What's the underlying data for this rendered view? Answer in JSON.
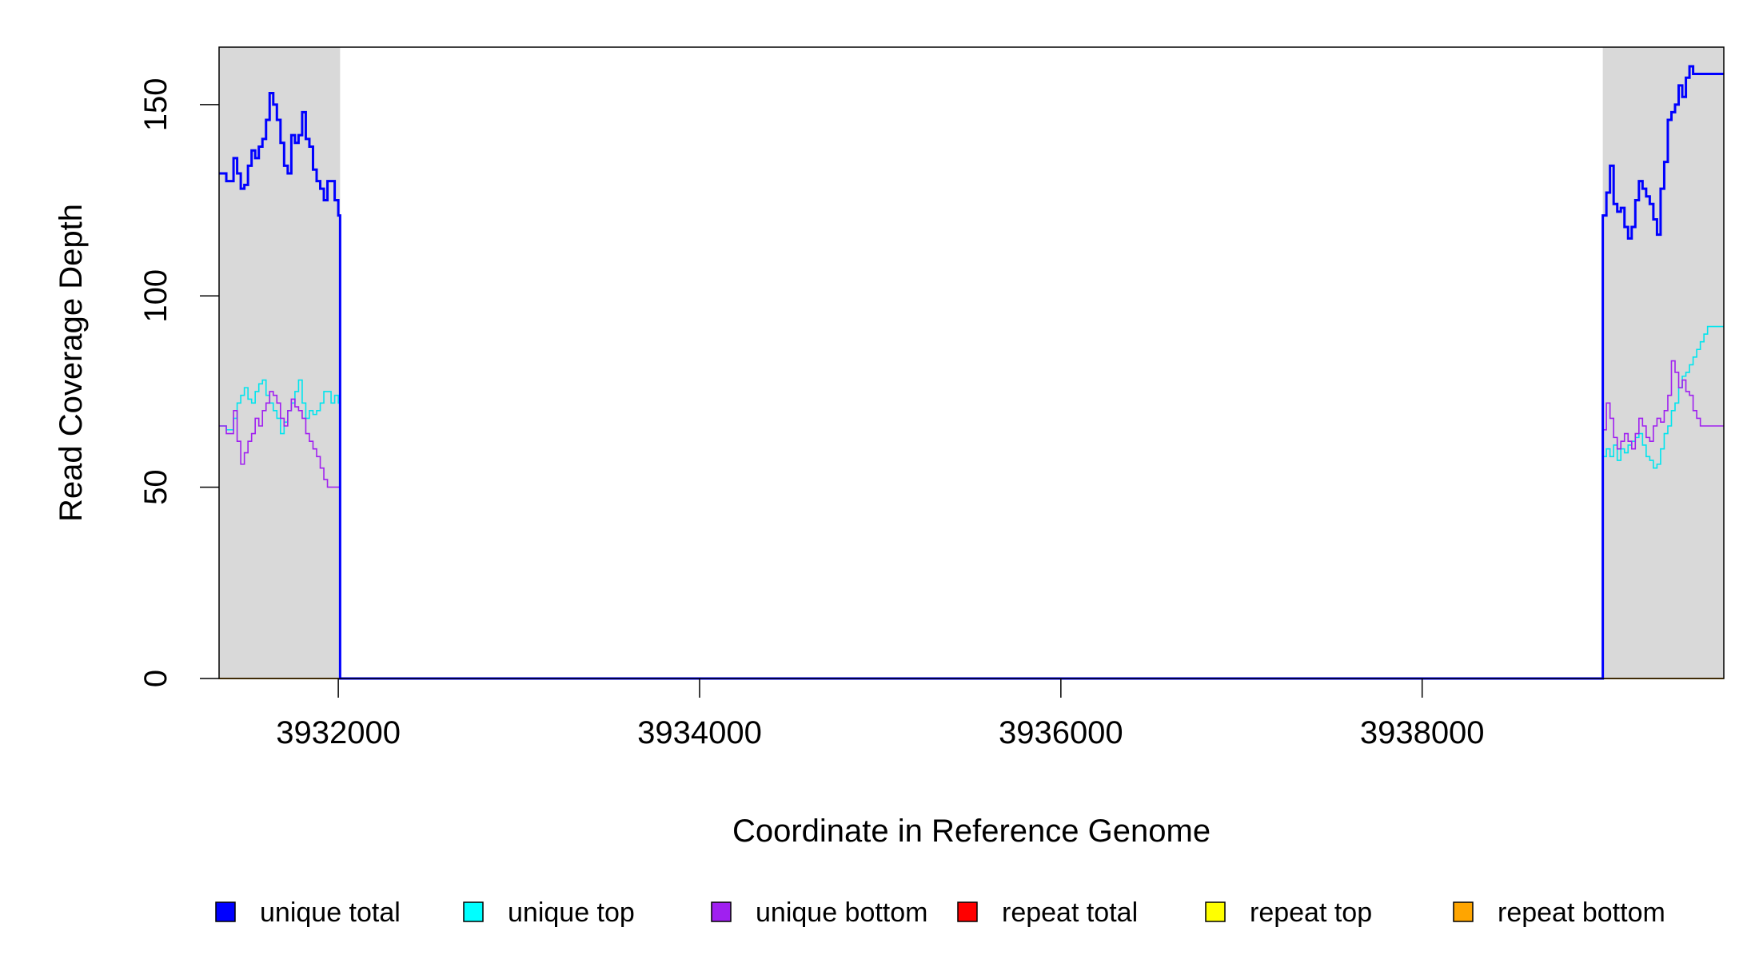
{
  "chart_data": {
    "type": "line",
    "title": "",
    "xlabel": "Coordinate in Reference Genome",
    "ylabel": "Read Coverage Depth",
    "xlim": [
      3931340,
      3939670
    ],
    "ylim": [
      0,
      165
    ],
    "x_ticks": [
      3932000,
      3934000,
      3936000,
      3938000
    ],
    "x_tick_labels": [
      "3932000",
      "3934000",
      "3936000",
      "3938000"
    ],
    "y_ticks": [
      0,
      50,
      100,
      150
    ],
    "y_tick_labels": [
      "0",
      "50",
      "100",
      "150"
    ],
    "grid": false,
    "legend_position": "bottom",
    "shaded_regions": [
      {
        "x_start": 3931340,
        "x_end": 3932010,
        "color": "#d9d9d9"
      },
      {
        "x_start": 3939000,
        "x_end": 3939670,
        "color": "#d9d9d9"
      }
    ],
    "series": [
      {
        "name": "unique total",
        "color": "#0000ff",
        "width": 3,
        "x": [
          3931340,
          3931380,
          3931420,
          3931440,
          3931460,
          3931480,
          3931500,
          3931520,
          3931540,
          3931560,
          3931580,
          3931600,
          3931620,
          3931640,
          3931660,
          3931680,
          3931700,
          3931720,
          3931740,
          3931760,
          3931780,
          3931800,
          3931820,
          3931840,
          3931860,
          3931880,
          3931900,
          3931920,
          3931940,
          3931960,
          3931980,
          3932000,
          3932010,
          3932020,
          3938990,
          3939000,
          3939020,
          3939040,
          3939060,
          3939080,
          3939100,
          3939120,
          3939140,
          3939160,
          3939180,
          3939200,
          3939220,
          3939240,
          3939260,
          3939280,
          3939300,
          3939320,
          3939340,
          3939360,
          3939380,
          3939400,
          3939420,
          3939440,
          3939460,
          3939480,
          3939500,
          3939520,
          3939540,
          3939560,
          3939580,
          3939600,
          3939620,
          3939640,
          3939670
        ],
        "y": [
          132,
          130,
          136,
          132,
          128,
          129,
          134,
          138,
          136,
          139,
          141,
          146,
          153,
          150,
          146,
          140,
          134,
          132,
          142,
          140,
          142,
          148,
          141,
          139,
          133,
          130,
          128,
          125,
          130,
          130,
          125,
          121,
          0,
          0,
          0,
          121,
          127,
          134,
          124,
          122,
          123,
          118,
          115,
          118,
          125,
          130,
          128,
          126,
          124,
          120,
          116,
          128,
          135,
          146,
          148,
          150,
          155,
          152,
          157,
          160,
          158,
          158,
          158,
          158,
          158,
          158,
          158,
          158,
          158
        ]
      },
      {
        "name": "unique top",
        "color": "#00e5ee",
        "width": 1.6,
        "x": [
          3931340,
          3931380,
          3931420,
          3931440,
          3931460,
          3931480,
          3931500,
          3931520,
          3931540,
          3931560,
          3931580,
          3931600,
          3931620,
          3931640,
          3931660,
          3931680,
          3931700,
          3931720,
          3931740,
          3931760,
          3931780,
          3931800,
          3931820,
          3931840,
          3931860,
          3931880,
          3931900,
          3931920,
          3931940,
          3931960,
          3931980,
          3932000,
          3932010,
          3932020,
          3938990,
          3939000,
          3939020,
          3939040,
          3939060,
          3939080,
          3939100,
          3939120,
          3939140,
          3939160,
          3939180,
          3939200,
          3939220,
          3939240,
          3939260,
          3939280,
          3939300,
          3939320,
          3939340,
          3939360,
          3939380,
          3939400,
          3939420,
          3939440,
          3939460,
          3939480,
          3939500,
          3939520,
          3939540,
          3939560,
          3939580,
          3939600,
          3939620,
          3939640,
          3939670
        ],
        "y": [
          66,
          65,
          68,
          72,
          74,
          76,
          73,
          72,
          75,
          77,
          78,
          74,
          72,
          70,
          68,
          64,
          67,
          70,
          72,
          75,
          78,
          72,
          68,
          70,
          69,
          70,
          72,
          75,
          75,
          72,
          74,
          72,
          0,
          0,
          0,
          58,
          60,
          58,
          61,
          57,
          60,
          59,
          61,
          62,
          63,
          64,
          61,
          58,
          57,
          55,
          56,
          60,
          64,
          66,
          70,
          72,
          76,
          79,
          80,
          82,
          84,
          86,
          88,
          90,
          92,
          92,
          92,
          92,
          92
        ]
      },
      {
        "name": "unique bottom",
        "color": "#a020f0",
        "width": 1.6,
        "x": [
          3931340,
          3931380,
          3931420,
          3931440,
          3931460,
          3931480,
          3931500,
          3931520,
          3931540,
          3931560,
          3931580,
          3931600,
          3931620,
          3931640,
          3931660,
          3931680,
          3931700,
          3931720,
          3931740,
          3931760,
          3931780,
          3931800,
          3931820,
          3931840,
          3931860,
          3931880,
          3931900,
          3931920,
          3931940,
          3931960,
          3931980,
          3932000,
          3932010,
          3932020,
          3938990,
          3939000,
          3939020,
          3939040,
          3939060,
          3939080,
          3939100,
          3939120,
          3939140,
          3939160,
          3939180,
          3939200,
          3939220,
          3939240,
          3939260,
          3939280,
          3939300,
          3939320,
          3939340,
          3939360,
          3939380,
          3939400,
          3939420,
          3939440,
          3939460,
          3939480,
          3939500,
          3939520,
          3939540,
          3939560,
          3939580,
          3939600,
          3939620,
          3939640,
          3939670
        ],
        "y": [
          66,
          64,
          70,
          62,
          56,
          59,
          62,
          64,
          68,
          66,
          70,
          72,
          75,
          74,
          72,
          68,
          66,
          70,
          73,
          71,
          70,
          68,
          64,
          62,
          60,
          58,
          55,
          52,
          50,
          50,
          50,
          50,
          0,
          0,
          0,
          65,
          72,
          68,
          63,
          60,
          62,
          64,
          62,
          60,
          64,
          68,
          66,
          63,
          62,
          66,
          68,
          67,
          70,
          74,
          83,
          80,
          76,
          78,
          75,
          74,
          70,
          68,
          66,
          66,
          66,
          66,
          66,
          66,
          66
        ]
      },
      {
        "name": "repeat total",
        "color": "#ff0000",
        "width": 1.6,
        "x": [
          3931340,
          3939670
        ],
        "y": [
          0,
          0
        ]
      },
      {
        "name": "repeat top",
        "color": "#ffff00",
        "width": 1.6,
        "x": [
          3931340,
          3939670
        ],
        "y": [
          0,
          0
        ]
      },
      {
        "name": "repeat bottom",
        "color": "#ffa500",
        "width": 1.6,
        "x": [
          3931340,
          3939670
        ],
        "y": [
          0,
          0
        ]
      }
    ],
    "legend": [
      {
        "label": "unique total",
        "color": "#0000ff"
      },
      {
        "label": "unique top",
        "color": "#00ffff"
      },
      {
        "label": "unique bottom",
        "color": "#a020f0"
      },
      {
        "label": "repeat total",
        "color": "#ff0000"
      },
      {
        "label": "repeat top",
        "color": "#ffff00"
      },
      {
        "label": "repeat bottom",
        "color": "#ffa500"
      }
    ]
  }
}
